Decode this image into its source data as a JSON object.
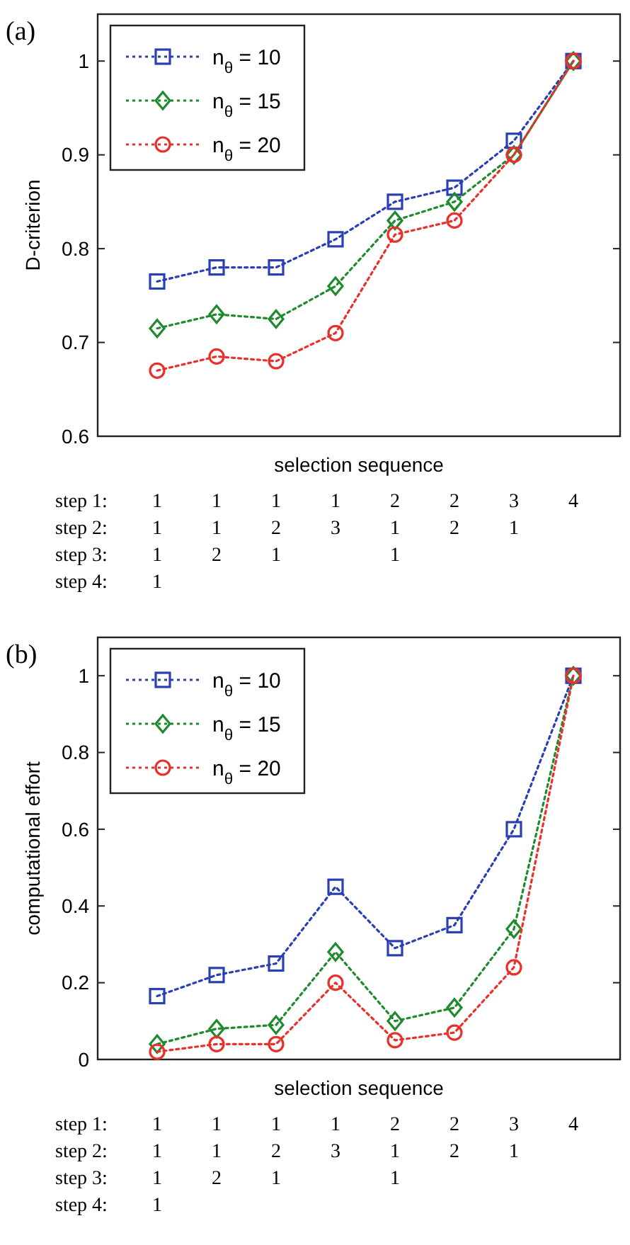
{
  "chart_data": [
    {
      "type": "line",
      "title": "(a)",
      "xlabel": "selection sequence",
      "ylabel": "D-criterion",
      "categories": [
        "1\n1\n1\n1",
        "1\n1\n2",
        "1\n2\n1",
        "1\n3",
        "2\n1\n1",
        "2\n2",
        "3\n1",
        "4"
      ],
      "ylim": [
        0.6,
        1.05
      ],
      "yticks": [
        0.6,
        0.7,
        0.8,
        0.9,
        1
      ],
      "grid": false,
      "legend": "top left",
      "line_style": "dotted",
      "annotations": [
        "step 1:",
        "step 2:",
        "step 3:",
        "step 4:"
      ],
      "series": [
        {
          "name": "n$_{θ}$ = 10",
          "color": "#2b3fb5",
          "marker": "square",
          "values": [
            0.765,
            0.78,
            0.78,
            0.81,
            0.85,
            0.865,
            0.915,
            1
          ]
        },
        {
          "name": "n$_{θ}$ = 15",
          "color": "#1f8a2e",
          "marker": "diamond",
          "values": [
            0.715,
            0.73,
            0.725,
            0.76,
            0.83,
            0.85,
            0.9,
            1
          ]
        },
        {
          "name": "n$_{θ}$ = 20",
          "color": "#e8312b",
          "marker": "circle",
          "values": [
            0.67,
            0.685,
            0.68,
            0.71,
            0.815,
            0.83,
            0.9,
            1
          ]
        }
      ]
    },
    {
      "type": "line",
      "title": "(b)",
      "xlabel": "selection sequence",
      "ylabel": "computational effort",
      "categories": [
        "1\n1\n1\n1",
        "1\n1\n2",
        "1\n2\n1",
        "1\n3",
        "2\n1\n1",
        "2\n2",
        "3\n1",
        "4"
      ],
      "ylim": [
        0,
        1.1
      ],
      "yticks": [
        0,
        0.2,
        0.4,
        0.6,
        0.8,
        1
      ],
      "grid": false,
      "legend": "top left",
      "line_style": "dotted",
      "annotations": [
        "step 1:",
        "step 2:",
        "step 3:",
        "step 4:"
      ],
      "series": [
        {
          "name": "n$_{θ}$ = 10",
          "color": "#2b3fb5",
          "marker": "square",
          "values": [
            0.165,
            0.22,
            0.25,
            0.45,
            0.29,
            0.35,
            0.6,
            1
          ]
        },
        {
          "name": "n$_{θ}$ = 15",
          "color": "#1f8a2e",
          "marker": "diamond",
          "values": [
            0.04,
            0.08,
            0.09,
            0.28,
            0.1,
            0.135,
            0.34,
            1
          ]
        },
        {
          "name": "n$_{θ}$ = 20",
          "color": "#e8312b",
          "marker": "circle",
          "values": [
            0.02,
            0.04,
            0.04,
            0.2,
            0.05,
            0.07,
            0.24,
            1
          ]
        }
      ]
    }
  ]
}
